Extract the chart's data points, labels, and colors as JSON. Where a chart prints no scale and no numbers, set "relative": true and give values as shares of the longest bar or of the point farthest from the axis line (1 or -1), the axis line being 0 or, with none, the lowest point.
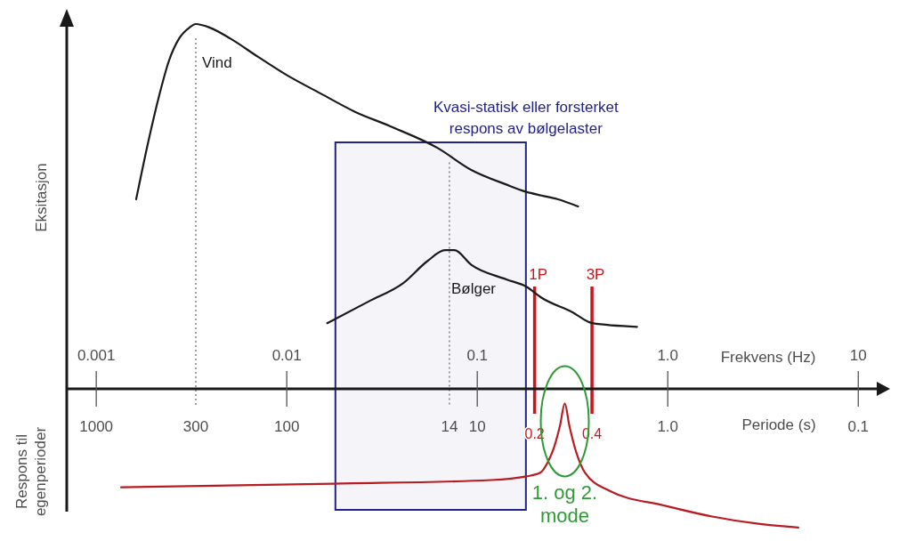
{
  "chart_data": {
    "type": "line",
    "relative": true,
    "log": "x",
    "xlabel": "Frekvens (Hz)",
    "ylabel": "Eksitasjon",
    "xlim": [
      0.0007,
      12.5
    ],
    "xticks": [
      0.001,
      0.01,
      0.1,
      {
        "value": 1,
        "label": "1.0"
      },
      10
    ],
    "series": [
      {
        "name": "Vind",
        "color": "#1a1a1a",
        "x": [
          0.00162,
          0.00188,
          0.00213,
          0.00241,
          0.00272,
          0.00308,
          0.00333,
          0.00395,
          0.00506,
          0.00707,
          0.01,
          0.015,
          0.0227,
          0.0348,
          0.062,
          0.093,
          0.142,
          0.181,
          0.217,
          0.263,
          0.338
        ],
        "values": [
          0.52,
          0.68,
          0.8,
          0.9,
          0.96,
          0.99,
          1,
          0.99,
          0.96,
          0.91,
          0.86,
          0.81,
          0.76,
          0.72,
          0.66,
          0.6,
          0.56,
          0.54,
          0.53,
          0.52,
          0.5
        ]
      },
      {
        "name": "Bølger",
        "color": "#1a1a1a",
        "x": [
          0.0163,
          0.027,
          0.0409,
          0.0547,
          0.0677,
          0.0714,
          0.0759,
          0.093,
          0.142,
          0.181,
          0.217,
          0.316,
          0.401,
          0.69
        ],
        "values": [
          0.18,
          0.24,
          0.29,
          0.35,
          0.38,
          0.38,
          0.38,
          0.34,
          0.3,
          0.28,
          0.25,
          0.21,
          0.18,
          0.17
        ]
      },
      {
        "color": "#b81c22",
        "x": [
          0.00135,
          0.0176,
          0.118,
          0.181,
          0.214,
          0.235,
          0.253,
          0.272,
          0.288,
          0.304,
          0.329,
          0.368,
          0.496,
          0.96,
          1.71,
          2.99,
          4.84
        ],
        "values": [
          -0.27,
          -0.26,
          -0.25,
          -0.24,
          -0.23,
          -0.2,
          -0.16,
          -0.1,
          -0.04,
          -0.1,
          -0.17,
          -0.23,
          -0.28,
          -0.32,
          -0.35,
          -0.37,
          -0.38
        ]
      }
    ],
    "ref_lines": [
      {
        "axis": "x",
        "value": 0.00333,
        "color": "#777777",
        "line_style": "dotted"
      },
      {
        "axis": "x",
        "value": 0.0714,
        "color": "#777777",
        "line_style": "dotted"
      },
      {
        "axis": "x",
        "value": 0.2,
        "label": "1P",
        "color": "#c8161d"
      },
      {
        "axis": "x",
        "value": 0.4,
        "label": "3P",
        "color": "#c8161d"
      }
    ],
    "bands": [
      {
        "axis": "x",
        "from": 0.018,
        "to": 0.18,
        "label": "Kvasi-statisk eller forsterket respons av bølgelaster",
        "color": "#22228c"
      }
    ],
    "annotations": [
      "Respons til egenperioder",
      "Periode (s)",
      "1000",
      "300",
      "100",
      "14",
      "10",
      "1.0",
      "0.1",
      "0.2",
      "0.4",
      "1. og 2. mode"
    ]
  }
}
